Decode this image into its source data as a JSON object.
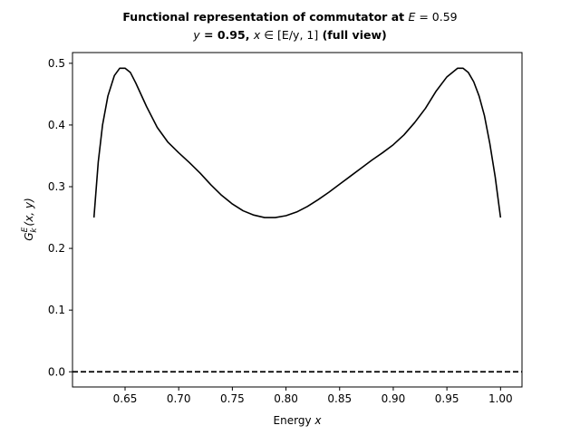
{
  "chart_data": {
    "type": "line",
    "title": {
      "line1": {
        "prefix": "Functional representation of commutator at ",
        "var": "E",
        "rest": " = 0.59"
      },
      "line2": {
        "var1": "y",
        "mid": " = 0.95, ",
        "var2": "x",
        "range": " ∈ [E/y, 1]",
        "suffix": " (full view)"
      }
    },
    "xlabel": {
      "text": "Energy ",
      "var": "x"
    },
    "ylabel": {
      "base": "G",
      "sup": "E",
      "sub": "k",
      "args": "(x, y)"
    },
    "xlim": [
      0.601,
      1.02
    ],
    "ylim": [
      -0.0246,
      0.5174
    ],
    "x_ticks": [
      0.65,
      0.7,
      0.75,
      0.8,
      0.85,
      0.9,
      0.95,
      1.0
    ],
    "x_tick_labels": [
      "0.65",
      "0.70",
      "0.75",
      "0.80",
      "0.85",
      "0.90",
      "0.95",
      "1.00"
    ],
    "y_ticks": [
      0.0,
      0.1,
      0.2,
      0.3,
      0.4,
      0.5
    ],
    "y_tick_labels": [
      "0.0",
      "0.1",
      "0.2",
      "0.3",
      "0.4",
      "0.5"
    ],
    "grid": false,
    "legend": "none",
    "series": [
      {
        "color": "#000000",
        "style": "solid",
        "x": [
          0.621,
          0.625,
          0.629,
          0.634,
          0.64,
          0.645,
          0.65,
          0.655,
          0.66,
          0.67,
          0.68,
          0.69,
          0.7,
          0.71,
          0.72,
          0.73,
          0.74,
          0.75,
          0.76,
          0.77,
          0.78,
          0.79,
          0.8,
          0.81,
          0.82,
          0.83,
          0.84,
          0.85,
          0.86,
          0.87,
          0.88,
          0.89,
          0.9,
          0.91,
          0.92,
          0.93,
          0.94,
          0.95,
          0.96,
          0.965,
          0.97,
          0.975,
          0.98,
          0.985,
          0.99,
          0.995,
          1.0
        ],
        "y": [
          0.25,
          0.34,
          0.4,
          0.447,
          0.48,
          0.492,
          0.492,
          0.485,
          0.468,
          0.43,
          0.396,
          0.372,
          0.355,
          0.339,
          0.322,
          0.303,
          0.286,
          0.272,
          0.261,
          0.254,
          0.25,
          0.25,
          0.253,
          0.259,
          0.268,
          0.279,
          0.291,
          0.304,
          0.317,
          0.33,
          0.343,
          0.355,
          0.368,
          0.384,
          0.404,
          0.427,
          0.455,
          0.478,
          0.492,
          0.492,
          0.485,
          0.47,
          0.447,
          0.415,
          0.37,
          0.316,
          0.25
        ]
      },
      {
        "color": "#000000",
        "style": "dashed",
        "x": [
          0.601,
          1.02
        ],
        "y": [
          0.0,
          0.0
        ]
      }
    ]
  }
}
